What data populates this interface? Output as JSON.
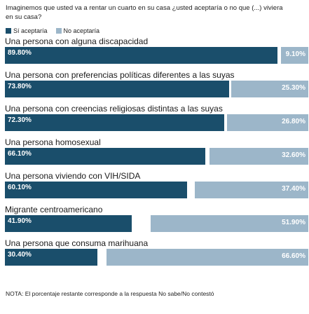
{
  "colors": {
    "si": "#1a4e6b",
    "no": "#9cb6c9"
  },
  "chart_data": {
    "type": "bar",
    "title": "Imaginemos que usted va a rentar un cuarto en su casa ¿usted aceptaría o no que (...) viviera en su casa?",
    "legend": {
      "si": "Sí aceptaría",
      "no": "No aceptaría"
    },
    "categories": [
      "Una persona con alguna discapacidad",
      "Una persona con preferencias políticas diferentes a las suyas",
      "Una persona con creencias religiosas distintas a las suyas",
      "Una persona homosexual",
      "Una persona viviendo con VIH/SIDA",
      "Migrante centroamericano",
      "Una persona que consuma marihuana"
    ],
    "series": [
      {
        "name": "Sí aceptaría",
        "values": [
          89.8,
          73.8,
          72.3,
          66.1,
          60.1,
          41.9,
          30.4
        ],
        "labels": [
          "89.80%",
          "73.80%",
          "72.30%",
          "66.10%",
          "60.10%",
          "41.90%",
          "30.40%"
        ]
      },
      {
        "name": "No aceptaría",
        "values": [
          9.1,
          25.3,
          26.8,
          32.6,
          37.4,
          51.9,
          66.6
        ],
        "labels": [
          "9.10%",
          "25.30%",
          "26.80%",
          "32.60%",
          "37.40%",
          "51.90%",
          "66.60%"
        ]
      }
    ],
    "xlim": [
      0,
      100
    ],
    "note": "NOTA: El porcentaje restante corresponde  a la respuesta No sabe/No contestó"
  }
}
